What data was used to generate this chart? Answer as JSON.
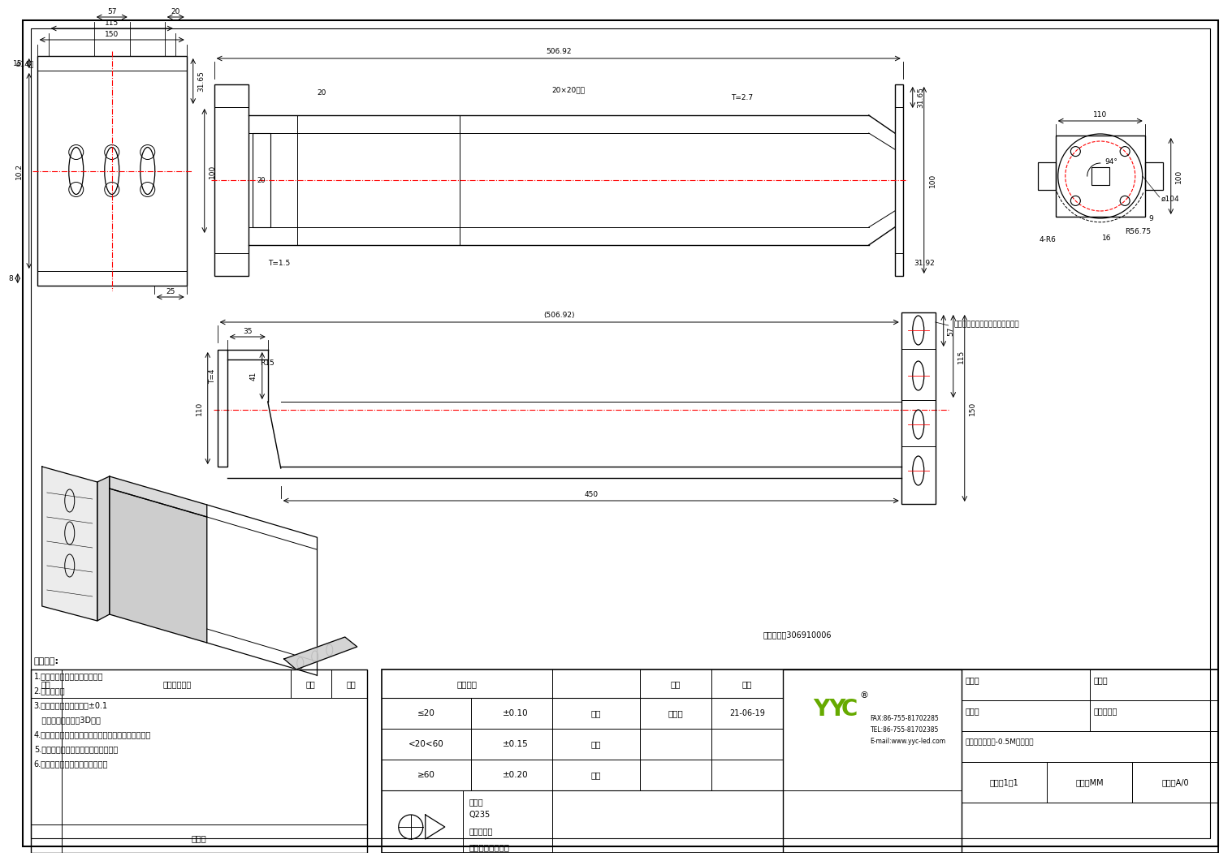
{
  "bg_color": "#ffffff",
  "lc": "#000000",
  "rc": "#ff0000",
  "gc": "#66aa00",
  "part_number": "零件料号：306910006",
  "tech_reqs": [
    "技术要求:",
    "1.未注尺寸公差按图表尺寸公差",
    "2.锐边钢锐；",
    "3.未注孔距牙距公差均为±0.1",
    "   其余未标注尺寸按3D尺寸",
    "4.各连接件焊接处必须满焊且焊接牢固平整光滑牢固；",
    "5.外观无变形，无色差，无刷花等缺陷",
    "6.表面处理：喷黑色砂纹户外粉；"
  ],
  "tol_title": "尺寸公差",
  "tol_rows": [
    [
      "≤20",
      "±0.10"
    ],
    [
      "<20<60",
      "±0.15"
    ],
    [
      "≥60",
      "±0.20"
    ]
  ],
  "roles": [
    "绘图",
    "审核",
    "核准"
  ],
  "name_hdr": "姓名",
  "date_hdr": "日期",
  "signer": "阀居平",
  "sign_date": "21-06-19",
  "mat_label": "材质：",
  "mat": "Q235",
  "surf_label": "表面处理：",
  "surf": "喷黑色砂纹户外粉",
  "name_label": "名称：",
  "prod_name": "投光灯墙装支架-0.5M（黑色）",
  "file_label": "文件编号：",
  "matnum_label": "料号：",
  "drawnum_label": "图号：",
  "ratio": "比例：1：1",
  "unit": "单位：MM",
  "ver": "版本：A/0",
  "contact": [
    "FAX:86-755-81702285",
    "TEL:86-755-81702385",
    "E-mail:www.yyc-led.com"
  ],
  "change_desc": "变更内容描述",
  "revision": "修改版",
  "ver_col": "版本",
  "name_col": "姓名",
  "date_col": "日期",
  "ann_tube": "20×20方管",
  "ann_506": "506.92",
  "ann_506p": "(506.92)",
  "ann_450": "450",
  "ann_150": "150",
  "ann_115": "115",
  "ann_57": "57",
  "ann_20": "20",
  "ann_t27": "T=2.7",
  "ann_t15": "T=1.5",
  "ann_t4": "T=4",
  "ann_35": "35",
  "ann_41": "41",
  "ann_110": "110",
  "ann_r15": "R15",
  "ann_3165": "31.65",
  "ann_100": "100",
  "ann_102": "10.2",
  "ann_8": "8",
  "ann_25": "25",
  "ann_15": "15",
  "ann_3192": "31.92",
  "ann_hole": "此面孔位分布同左视图的孔位分布",
  "ann_phi14": "ø14孔",
  "ann_phi104": "ø104",
  "ann_4r6": "4-R6",
  "ann_r5675": "R56.75",
  "ann_94": "94°",
  "ann_110rv": "110",
  "ann_100rv": "100",
  "ann_9": "9",
  "ann_16": "16",
  "ann_57rv": "57",
  "ann_115rv": "115",
  "ann_150rv": "150"
}
